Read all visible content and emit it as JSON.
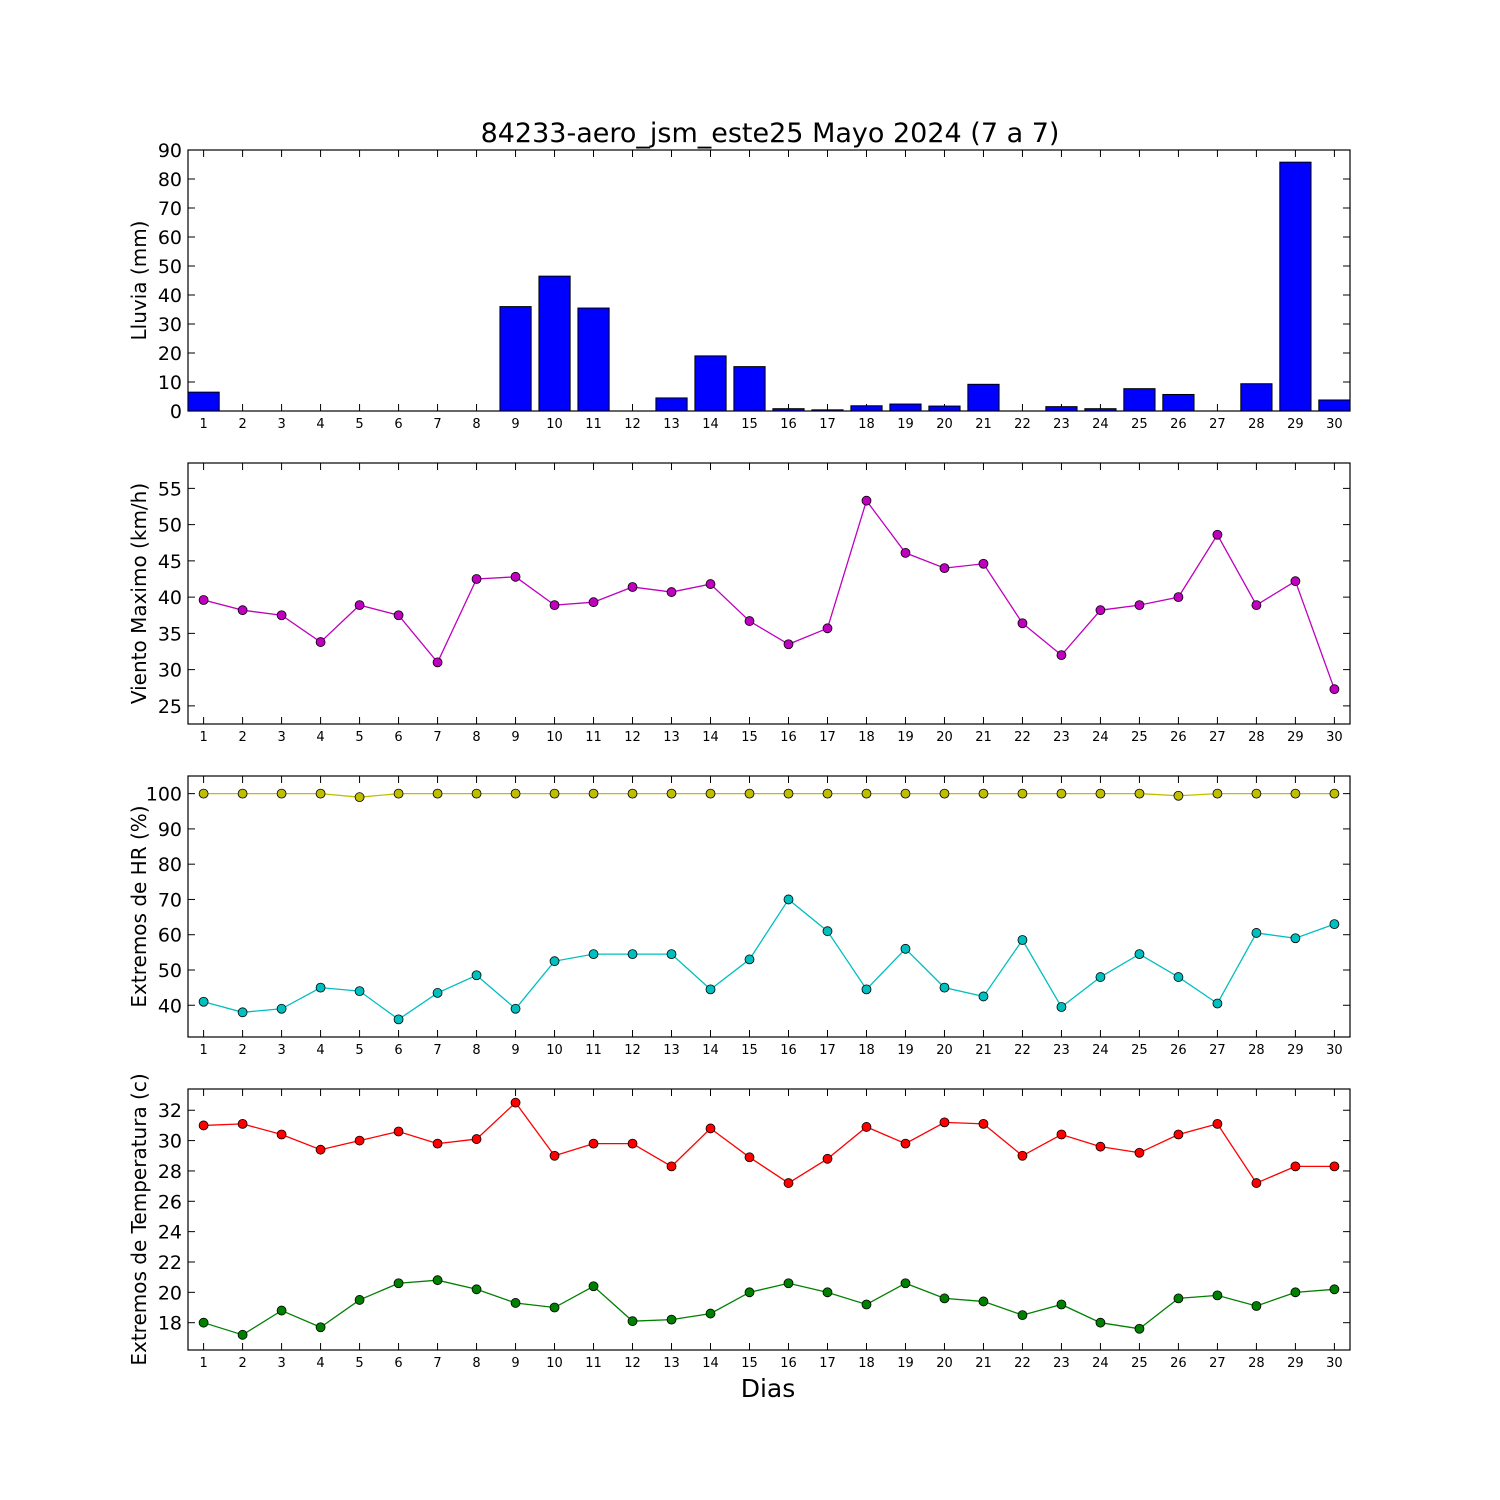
{
  "title": "84233-aero_jsm_este25 Mayo 2024  (7 a 7)",
  "xlabel": "Dias",
  "colors": {
    "rain": "#0000ff",
    "wind": "#bf00bf",
    "hr_max": "#bfbf00",
    "hr_min": "#00bfbf",
    "temp_max": "#ff0000",
    "temp_min": "#008000"
  },
  "chart_data": [
    {
      "type": "bar",
      "ylabel": "Lluvia (mm)",
      "ylim": [
        0,
        90
      ],
      "yticks": [
        0,
        10,
        20,
        30,
        40,
        50,
        60,
        70,
        80,
        90
      ],
      "categories": [
        1,
        2,
        3,
        4,
        5,
        6,
        7,
        8,
        9,
        10,
        11,
        12,
        13,
        14,
        15,
        16,
        17,
        18,
        19,
        20,
        21,
        22,
        23,
        24,
        25,
        26,
        27,
        28,
        29,
        30
      ],
      "values": [
        6.5,
        0,
        0,
        0,
        0,
        0,
        0,
        0,
        36,
        46.5,
        35.5,
        0,
        4.5,
        19,
        15.3,
        0.8,
        0.4,
        1.8,
        2.4,
        1.7,
        9.2,
        0,
        1.5,
        0.8,
        7.7,
        5.7,
        0,
        9.4,
        85.8,
        3.8
      ],
      "grid": false
    },
    {
      "type": "line",
      "ylabel": "Viento Maximo (km/h)",
      "ylim": [
        22.5,
        58.5
      ],
      "yticks": [
        25,
        30,
        35,
        40,
        45,
        50,
        55
      ],
      "x": [
        1,
        2,
        3,
        4,
        5,
        6,
        7,
        8,
        9,
        10,
        11,
        12,
        13,
        14,
        15,
        16,
        17,
        18,
        19,
        20,
        21,
        22,
        23,
        24,
        25,
        26,
        27,
        28,
        29,
        30
      ],
      "series": [
        {
          "values": [
            39.6,
            38.2,
            37.5,
            33.8,
            38.9,
            37.5,
            31.0,
            42.5,
            42.8,
            38.9,
            39.3,
            41.4,
            40.7,
            41.8,
            36.7,
            33.5,
            35.7,
            53.3,
            46.1,
            44.0,
            44.6,
            36.4,
            32.0,
            38.2,
            38.9,
            40.0,
            48.6,
            38.9,
            42.2,
            27.3
          ]
        }
      ],
      "grid": false
    },
    {
      "type": "line",
      "ylabel": "Extremos de HR (%)",
      "ylim": [
        31,
        105
      ],
      "yticks": [
        40,
        50,
        60,
        70,
        80,
        90,
        100
      ],
      "x": [
        1,
        2,
        3,
        4,
        5,
        6,
        7,
        8,
        9,
        10,
        11,
        12,
        13,
        14,
        15,
        16,
        17,
        18,
        19,
        20,
        21,
        22,
        23,
        24,
        25,
        26,
        27,
        28,
        29,
        30
      ],
      "series": [
        {
          "values": [
            100,
            100,
            100,
            100,
            99,
            100,
            100,
            100,
            100,
            100,
            100,
            100,
            100,
            100,
            100,
            100,
            100,
            100,
            100,
            100,
            100,
            100,
            100,
            100,
            100,
            99.4,
            100,
            100,
            100,
            100
          ]
        },
        {
          "values": [
            41,
            38,
            39,
            45,
            44,
            36,
            43.5,
            48.5,
            39,
            52.5,
            54.5,
            54.5,
            54.5,
            44.5,
            53,
            70,
            61,
            44.5,
            56,
            45,
            42.5,
            58.5,
            39.5,
            48,
            54.5,
            48,
            40.5,
            60.5,
            59,
            63
          ]
        }
      ],
      "grid": false
    },
    {
      "type": "line",
      "ylabel": "Extremos de Temperatura (c)",
      "ylim": [
        16.2,
        33.4
      ],
      "yticks": [
        18,
        20,
        22,
        24,
        26,
        28,
        30,
        32
      ],
      "x": [
        1,
        2,
        3,
        4,
        5,
        6,
        7,
        8,
        9,
        10,
        11,
        12,
        13,
        14,
        15,
        16,
        17,
        18,
        19,
        20,
        21,
        22,
        23,
        24,
        25,
        26,
        27,
        28,
        29,
        30
      ],
      "series": [
        {
          "values": [
            31.0,
            31.1,
            30.4,
            29.4,
            30.0,
            30.6,
            29.8,
            30.1,
            32.5,
            29.0,
            29.8,
            29.8,
            28.3,
            30.8,
            28.9,
            27.2,
            28.8,
            30.9,
            29.8,
            31.2,
            31.1,
            29.0,
            30.4,
            29.6,
            29.2,
            30.4,
            31.1,
            27.2,
            28.3,
            28.3
          ]
        },
        {
          "values": [
            18.0,
            17.2,
            18.8,
            17.7,
            19.5,
            20.6,
            20.8,
            20.2,
            19.3,
            19.0,
            20.4,
            18.1,
            18.2,
            18.6,
            20.0,
            20.6,
            20.0,
            19.2,
            20.6,
            19.6,
            19.4,
            18.5,
            19.2,
            18.0,
            17.6,
            19.6,
            19.8,
            19.1,
            20.0,
            20.2
          ]
        }
      ],
      "grid": false
    }
  ]
}
